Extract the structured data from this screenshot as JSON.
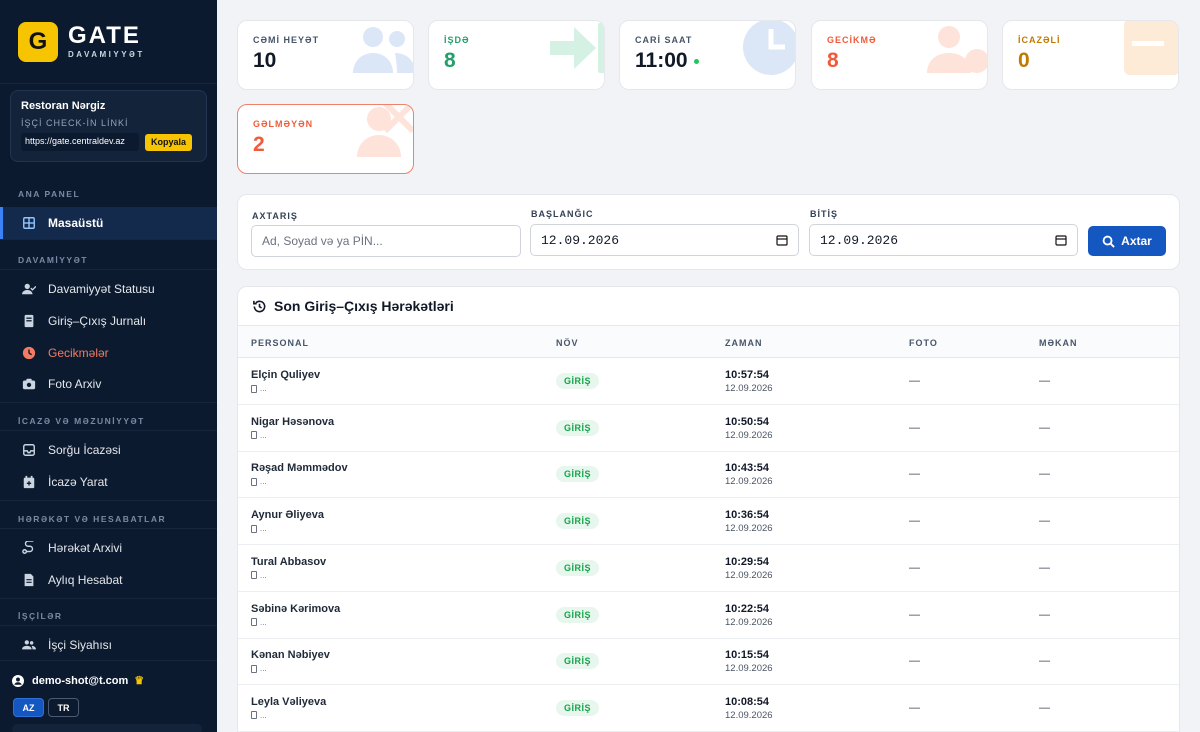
{
  "brand": {
    "logo_letter": "G",
    "name": "GATE",
    "subtitle": "DAVAMIYYƏT"
  },
  "company": {
    "name": "Restoran Nərgiz",
    "checkin_label": "İŞÇİ CHECK-İN LİNKİ",
    "link": "https://gate.centraldev.az",
    "copy_label": "Kopyala"
  },
  "sidebar": {
    "sections": {
      "main": "ANA PANEL",
      "attendance": "DAVAMİYYƏT",
      "permissions": "İCAZƏ VƏ MƏZUNİYYƏT",
      "movements": "HƏRƏKƏT VƏ HESABATLAR",
      "employees": "İŞÇİLƏR"
    },
    "items": [
      {
        "label": "Masaüstü",
        "icon": "grid-icon"
      },
      {
        "label": "Davamiyyət Statusu",
        "icon": "user-check-icon"
      },
      {
        "label": "Giriş–Çıxış Jurnalı",
        "icon": "book-icon"
      },
      {
        "label": "Gecikmələr",
        "icon": "clock-icon"
      },
      {
        "label": "Foto Arxiv",
        "icon": "camera-icon"
      },
      {
        "label": "Sorğu İcazəsi",
        "icon": "inbox-icon"
      },
      {
        "label": "İcazə Yarat",
        "icon": "calendar-plus-icon"
      },
      {
        "label": "Hərəkət Arxivi",
        "icon": "route-icon"
      },
      {
        "label": "Aylıq Hesabat",
        "icon": "report-icon"
      },
      {
        "label": "İşçi Siyahısı",
        "icon": "users-icon"
      }
    ]
  },
  "user": {
    "email": "demo-shot@t.com"
  },
  "languages": [
    "AZ",
    "TR"
  ],
  "stats": [
    {
      "label": "CƏMİ HEYƏT",
      "value": "10",
      "color": "#111827"
    },
    {
      "label": "İŞDƏ",
      "value": "8",
      "color": "#22a06b"
    },
    {
      "label": "CARİ SAAT",
      "value": "11:00",
      "color": "#111827"
    },
    {
      "label": "GECİKMƏ",
      "value": "8",
      "color": "#ef5b3b"
    },
    {
      "label": "İCAZƏLİ",
      "value": "0",
      "color": "#c07a00"
    },
    {
      "label": "GƏLMƏYƏN",
      "value": "2",
      "color": "#ef5b3b"
    }
  ],
  "filter": {
    "search_label": "AXTARIŞ",
    "search_placeholder": "Ad, Soyad və ya PİN...",
    "start_label": "BAŞLANĞIC",
    "start_value": "12.09.2026",
    "end_label": "BİTİŞ",
    "end_value": "12.09.2026",
    "button_label": "Axtar"
  },
  "table": {
    "title": "Son Giriş–Çıxış Hərəkətləri",
    "columns": [
      "PERSONAL",
      "NÖV",
      "ZAMAN",
      "FOTO",
      "MƏKAN"
    ],
    "rows": [
      {
        "name": "Elçin Quliyev",
        "device": "...",
        "type": "GİRİŞ",
        "time": "10:57:54",
        "date": "12.09.2026",
        "photo": "—",
        "location": "—"
      },
      {
        "name": "Nigar Həsənova",
        "device": "...",
        "type": "GİRİŞ",
        "time": "10:50:54",
        "date": "12.09.2026",
        "photo": "—",
        "location": "—"
      },
      {
        "name": "Rəşad Məmmədov",
        "device": "...",
        "type": "GİRİŞ",
        "time": "10:43:54",
        "date": "12.09.2026",
        "photo": "—",
        "location": "—"
      },
      {
        "name": "Aynur Əliyeva",
        "device": "...",
        "type": "GİRİŞ",
        "time": "10:36:54",
        "date": "12.09.2026",
        "photo": "—",
        "location": "—"
      },
      {
        "name": "Tural Abbasov",
        "device": "...",
        "type": "GİRİŞ",
        "time": "10:29:54",
        "date": "12.09.2026",
        "photo": "—",
        "location": "—"
      },
      {
        "name": "Səbinə Kərimova",
        "device": "...",
        "type": "GİRİŞ",
        "time": "10:22:54",
        "date": "12.09.2026",
        "photo": "—",
        "location": "—"
      },
      {
        "name": "Kənan Nəbiyev",
        "device": "...",
        "type": "GİRİŞ",
        "time": "10:15:54",
        "date": "12.09.2026",
        "photo": "—",
        "location": "—"
      },
      {
        "name": "Leyla Vəliyeva",
        "device": "...",
        "type": "GİRİŞ",
        "time": "10:08:54",
        "date": "12.09.2026",
        "photo": "—",
        "location": "—"
      }
    ]
  }
}
